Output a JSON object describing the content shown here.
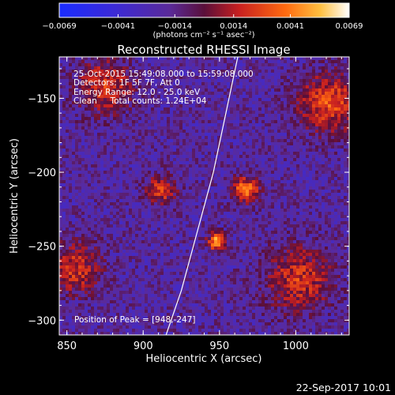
{
  "chart_data": {
    "type": "heatmap",
    "title": "Reconstructed RHESSI Image",
    "xlabel": "Heliocentric X (arcsec)",
    "ylabel": "Heliocentric Y (arcsec)",
    "xlim": [
      845,
      1035
    ],
    "ylim": [
      -310,
      -122
    ],
    "x_ticks": [
      850,
      900,
      950,
      1000
    ],
    "x_tick_labels": [
      "850",
      "900",
      "950",
      "1000"
    ],
    "y_ticks": [
      -150,
      -200,
      -250,
      -300
    ],
    "y_tick_labels": [
      "−150",
      "−200",
      "−250",
      "−300"
    ],
    "colorbar": {
      "min": -0.0069,
      "max": 0.0069,
      "ticks": [
        -0.0069,
        -0.0041,
        -0.0014,
        0.0014,
        0.0041,
        0.0069
      ],
      "tick_labels": [
        "−0.0069",
        "−0.0041",
        "−0.0014",
        "0.0014",
        "0.0041",
        "0.0069"
      ],
      "unit_label": "(photons cm⁻² s⁻¹ asec⁻²)",
      "colormap": "rhessi (blue-purple-red-orange-yellow-white)"
    },
    "annotations": {
      "time_range": "25-Oct-2015 15:49:08.000 to 15:59:08.000",
      "detectors": "Detectors: 1F 5F 7F, Att 0",
      "energy": "Energy Range: 12.0 - 25.0 keV",
      "method": "Clean     Total counts: 1.24E+04",
      "peak": "Position of Peak = [948,-247]"
    },
    "sources": [
      {
        "x": 967,
        "y": -212,
        "peak": 0.0062,
        "sigma": 6
      },
      {
        "x": 912,
        "y": -212,
        "peak": 0.0042,
        "sigma": 7
      },
      {
        "x": 875,
        "y": -142,
        "peak": 0.004,
        "sigma": 13
      },
      {
        "x": 1022,
        "y": -153,
        "peak": 0.0048,
        "sigma": 14
      },
      {
        "x": 1002,
        "y": -272,
        "peak": 0.0041,
        "sigma": 15
      },
      {
        "x": 855,
        "y": -265,
        "peak": 0.004,
        "sigma": 12
      },
      {
        "x": 948,
        "y": -247,
        "peak": 0.0069,
        "sigma": 4
      }
    ],
    "limb_curve": [
      [
        962,
        -122
      ],
      [
        946,
        -200
      ],
      [
        925,
        -280
      ],
      [
        915,
        -310
      ]
    ]
  },
  "footer_timestamp": "22-Sep-2017 10:01"
}
